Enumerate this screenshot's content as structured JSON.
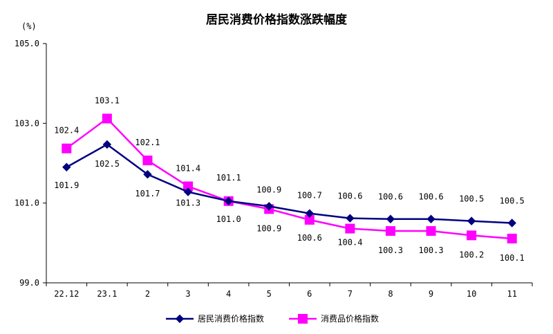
{
  "chart_data": {
    "type": "line",
    "title": "居民消费价格指数涨跌幅度",
    "unit_label": "(%)",
    "xlabel": "",
    "ylabel": "",
    "ylim": [
      99.0,
      105.0
    ],
    "yticks": [
      "99.0",
      "101.0",
      "103.0",
      "105.0"
    ],
    "categories": [
      "22.12",
      "23.1",
      "2",
      "3",
      "4",
      "5",
      "6",
      "7",
      "8",
      "9",
      "10",
      "11"
    ],
    "grid": false,
    "legend_position": "bottom",
    "series": [
      {
        "name": "居民消费价格指数",
        "color": "#000080",
        "marker": "diamond",
        "values": [
          101.9,
          102.5,
          101.7,
          101.3,
          101.0,
          100.9,
          100.7,
          100.6,
          100.6,
          100.6,
          100.5,
          100.5
        ],
        "labels": [
          "101.9",
          "102.5",
          "101.7",
          "101.3",
          "101.0",
          "100.9",
          "100.7",
          "100.6",
          "100.6",
          "100.6",
          "100.5",
          "100.5"
        ],
        "plot_values": [
          101.9,
          102.47,
          101.72,
          101.28,
          101.05,
          100.92,
          100.74,
          100.62,
          100.6,
          100.6,
          100.55,
          100.5
        ]
      },
      {
        "name": "消费品价格指数",
        "color": "#FF00FF",
        "marker": "square",
        "values": [
          102.4,
          103.1,
          102.1,
          101.4,
          101.1,
          100.9,
          100.6,
          100.4,
          100.3,
          100.3,
          100.2,
          100.1
        ],
        "labels": [
          "102.4",
          "103.1",
          "102.1",
          "101.4",
          "101.1",
          "100.9",
          "100.6",
          "100.4",
          "100.3",
          "100.3",
          "100.2",
          "100.1"
        ],
        "plot_values": [
          102.37,
          103.12,
          102.07,
          101.42,
          101.05,
          100.85,
          100.58,
          100.36,
          100.3,
          100.3,
          100.19,
          100.11
        ]
      }
    ]
  }
}
